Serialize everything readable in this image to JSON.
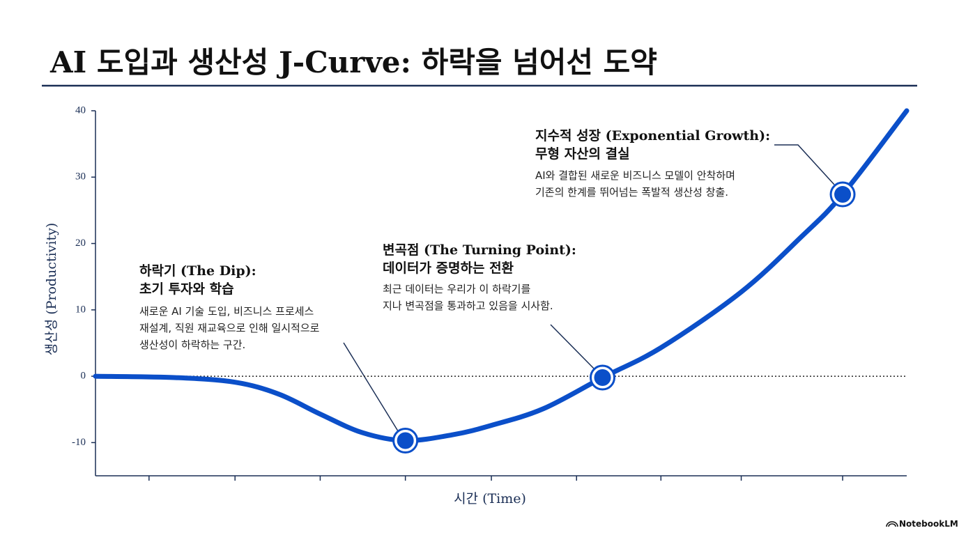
{
  "chart_data": {
    "type": "line",
    "title": "AI 도입과 생산성 J-Curve: 하락을 넘어선 도약",
    "xlabel": "시간 (Time)",
    "ylabel": "생산성 (Productivity)",
    "xlim": [
      0,
      100
    ],
    "ylim": [
      -15,
      40
    ],
    "xticks": [
      6.6,
      17.2,
      27.7,
      38.2,
      48.8,
      59.3,
      69.7,
      79.6,
      92.1
    ],
    "yticks": [
      -10,
      0,
      10,
      20,
      30,
      40
    ],
    "baseline": 0,
    "series": [
      {
        "color": "#0b4fc9",
        "x": [
          0,
          9.7,
          17.2,
          22.6,
          27.7,
          32.9,
          38.2,
          44.1,
          48.8,
          55.2,
          62.5,
          69.7,
          79.6,
          87.0,
          92.1,
          100
        ],
        "values": [
          0,
          -0.2,
          -0.9,
          -2.7,
          -5.7,
          -8.5,
          -9.7,
          -8.8,
          -7.4,
          -4.9,
          -0.2,
          4.3,
          12.7,
          21.0,
          27.4,
          40
        ]
      },
      {
        "color": "#0b4fc9",
        "markers": true,
        "x": [
          38.2,
          62.5,
          92.1
        ],
        "values": [
          -9.7,
          -0.2,
          27.4
        ]
      }
    ],
    "annotations": [
      {
        "title": [
          "하락기 (The Dip):",
          "초기 투자와 학습"
        ],
        "text": [
          "새로운 AI 기술 도입, 비즈니스 프로세스",
          "재설계, 직원 재교육으로 인해 일시적으로",
          "생산성이 하락하는 구간."
        ]
      },
      {
        "title": [
          "변곡점 (The Turning Point):",
          "데이터가 증명하는 전환"
        ],
        "text": [
          "최근 데이터는 우리가 이 하락기를",
          "지나 변곡점을 통과하고 있음을 시사함."
        ]
      },
      {
        "title": [
          "지수적 성장 (Exponential Growth):",
          "무형 자산의 결실"
        ],
        "text": [
          "AI와 결합된 새로운 비즈니스 모델이 안착하며",
          "기존의 한계를 뛰어넘는 폭발적 생산성 창출."
        ]
      }
    ]
  },
  "footer": "NotebookLM"
}
